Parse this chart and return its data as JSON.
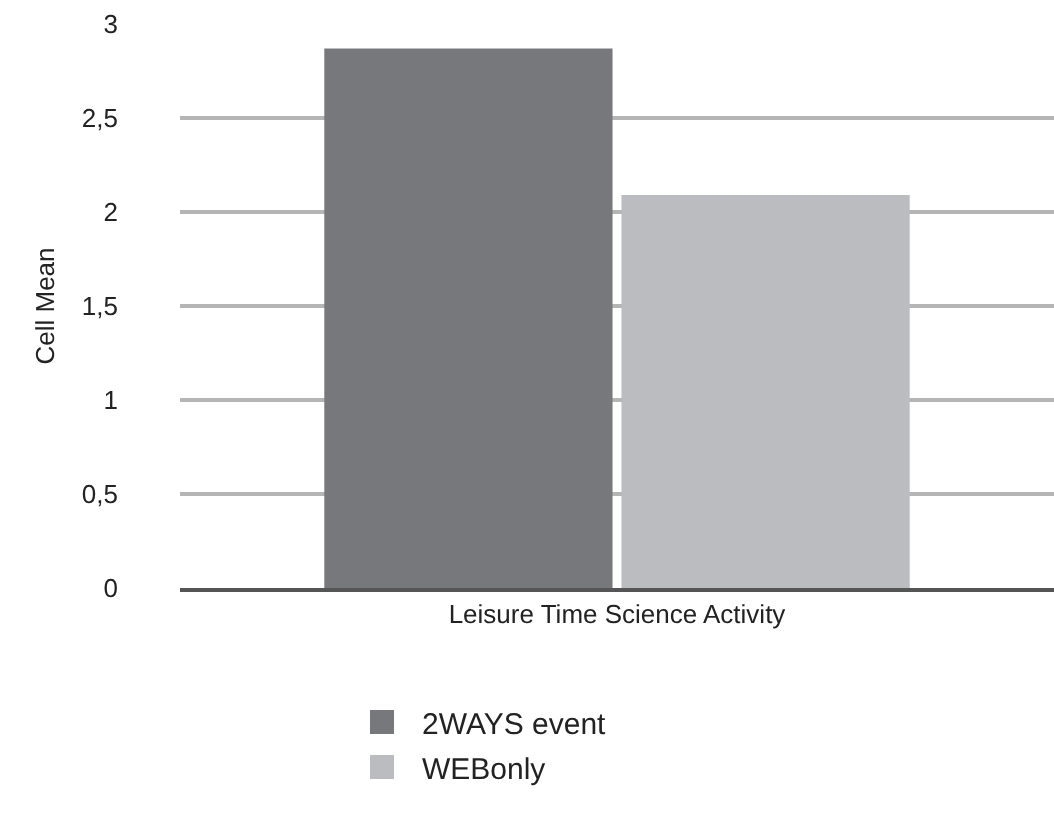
{
  "chart_data": {
    "type": "bar",
    "ylabel": "Cell Mean",
    "categories": [
      "Leisure Time Science Activity"
    ],
    "series": [
      {
        "name": "2WAYS event",
        "color": "#77787b",
        "values": [
          2.87
        ]
      },
      {
        "name": "WEBonly",
        "color": "#bbbcbf",
        "values": [
          2.09
        ]
      }
    ],
    "ylim": [
      0,
      3
    ],
    "yticks": [
      0,
      {
        "value": 0.5,
        "label": "0,5"
      },
      1,
      {
        "value": 1.5,
        "label": "1,5"
      },
      2,
      {
        "value": 2.5,
        "label": "2,5"
      },
      3
    ],
    "grid": "y",
    "legend": "bottom"
  }
}
